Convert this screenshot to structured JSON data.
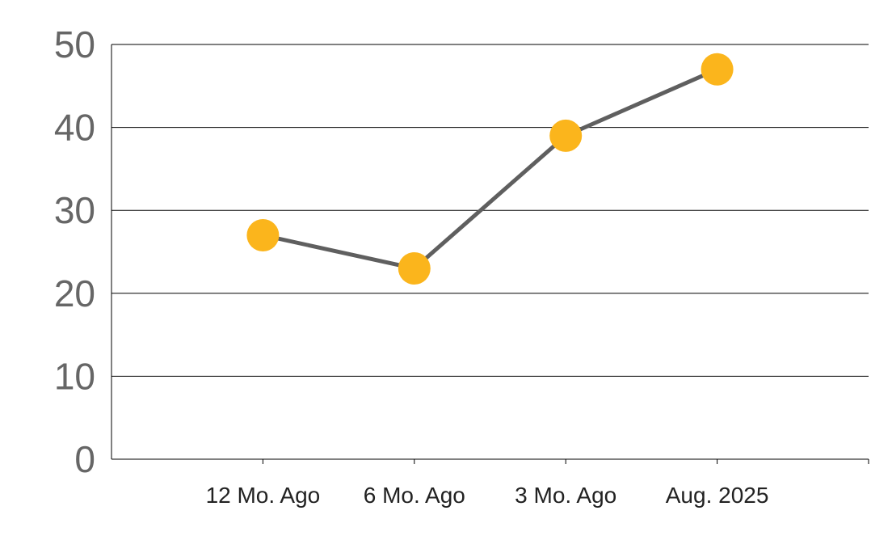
{
  "chart_data": {
    "type": "line",
    "categories": [
      "12 Mo. Ago",
      "6 Mo. Ago",
      "3 Mo. Ago",
      "Aug. 2025"
    ],
    "series": [
      {
        "values": [
          27,
          23,
          39,
          47
        ]
      }
    ],
    "ylim": [
      0,
      50
    ],
    "yticks": [
      0,
      10,
      20,
      30,
      40,
      50
    ],
    "grid": true,
    "legend": "none",
    "colors": {
      "line": "#5f5f5f",
      "marker": "#fbb51c",
      "grid": "#000000",
      "tick_text": "#666666",
      "category_text": "#222222"
    }
  }
}
